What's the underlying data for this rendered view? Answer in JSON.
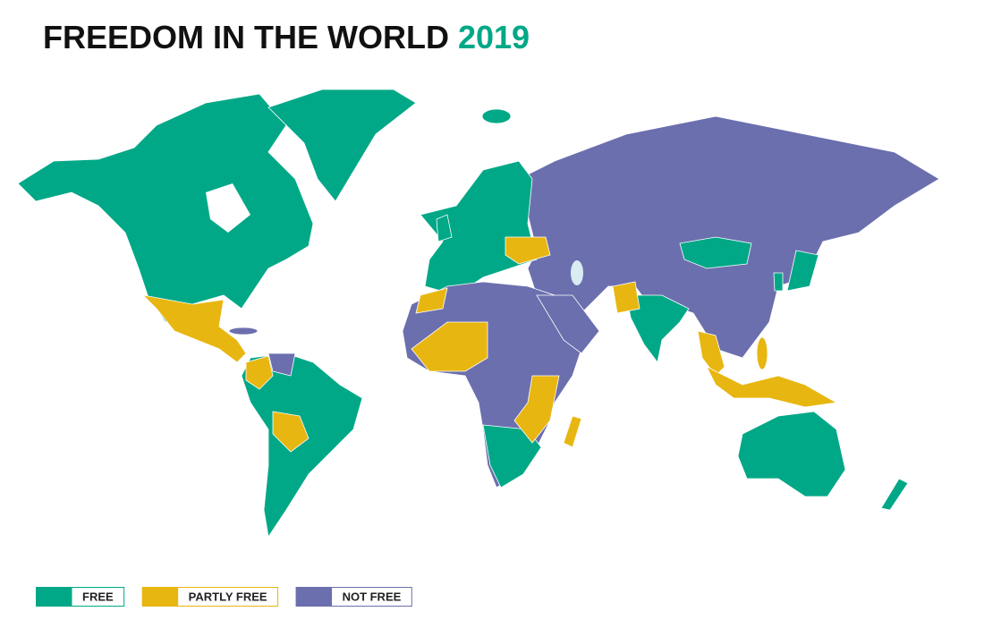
{
  "header": {
    "title": "FREEDOM IN THE WORLD",
    "year": "2019"
  },
  "legend": {
    "items": [
      {
        "label": "FREE",
        "color": "#00a887"
      },
      {
        "label": "PARTLY FREE",
        "color": "#e8b610"
      },
      {
        "label": "NOT FREE",
        "color": "#6b6fae"
      }
    ]
  }
}
